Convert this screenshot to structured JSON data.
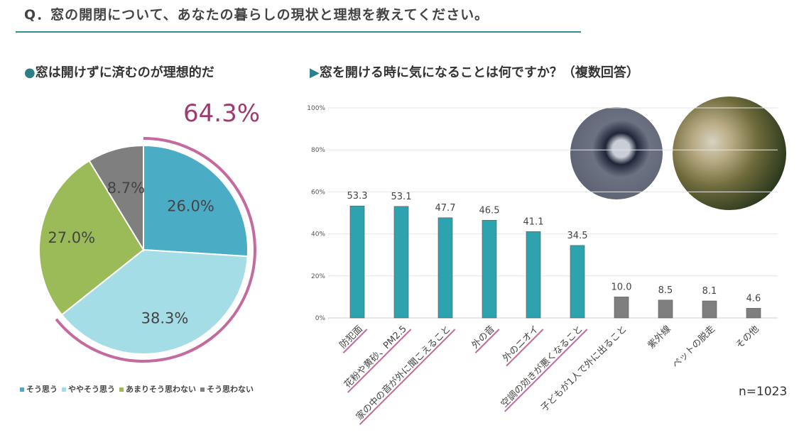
{
  "question": "Q．窓の開閉について、あなたの暮らしの現状と理想を教えてください。",
  "left_title": "窓は開けずに済むのが理想的だ",
  "left_highlight": "64.3%",
  "right_title": "窓を開ける時に気になることは何ですか？（複数回答）",
  "sample": "n=1023",
  "colors": {
    "accent": "#2f8f92",
    "highlight": "#9e3a6e",
    "arc": "#c46a9e",
    "bar_main": "#2ea3b0",
    "bar_other": "#7f7f7f"
  },
  "images": [
    "window-intruder-photo",
    "pollen-photo"
  ],
  "chart_data": [
    {
      "type": "pie",
      "title": "窓は開けずに済むのが理想的だ",
      "start": "top",
      "direction": "clockwise",
      "slices": [
        {
          "name": "そう思う",
          "value": 26.0,
          "label": "26.0%",
          "color": "#4bacc6"
        },
        {
          "name": "ややそう思う",
          "value": 38.3,
          "label": "38.3%",
          "color": "#a5dde7"
        },
        {
          "name": "あまりそう思わない",
          "value": 27.0,
          "label": "27.0%",
          "color": "#9bbb59"
        },
        {
          "name": "そう思わない",
          "value": 8.7,
          "label": "8.7%",
          "color": "#7f7f7f"
        }
      ],
      "legend": "bottom",
      "highlight_arc_value": 64.3
    },
    {
      "type": "bar",
      "title": "窓を開ける時に気になることは何ですか？（複数回答）",
      "categories": [
        "防犯面",
        "花粉や黄砂、PM2.5",
        "家の中の音が外に聞こえること",
        "外の音",
        "外のニオイ",
        "空調の効きが悪くなること",
        "子どもが1人で外に出ること",
        "紫外線",
        "ペットの脱走",
        "その他"
      ],
      "values": [
        53.3,
        53.1,
        47.7,
        46.5,
        41.1,
        34.5,
        10.0,
        8.5,
        8.1,
        4.6
      ],
      "labels": [
        "53.3",
        "53.1",
        "47.7",
        "46.5",
        "41.1",
        "34.5",
        "10.0",
        "8.5",
        "8.1",
        "4.6"
      ],
      "underlined": [
        true,
        true,
        true,
        true,
        true,
        true,
        false,
        false,
        false,
        false
      ],
      "ylim": [
        0,
        100
      ],
      "yticks": [
        "0%",
        "20%",
        "40%",
        "60%",
        "80%",
        "100%"
      ],
      "grid": true
    }
  ]
}
